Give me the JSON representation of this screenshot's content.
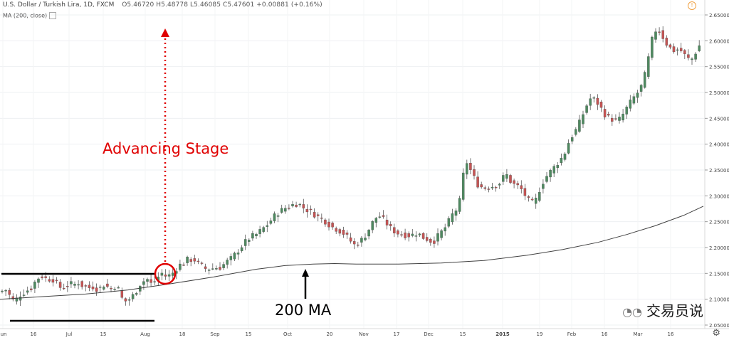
{
  "header": {
    "symbol": "U.S. Dollar / Turkish Lira, 1D, FXCM",
    "ohlc": "O5.46720 H5.48778 L5.46085 C5.47601 +0.00881 (+0.16%)",
    "indicator": "MA (200, close)"
  },
  "watermark": "交易员说",
  "chart_data": {
    "type": "line",
    "subtype": "candlestick",
    "y_ticks": [
      "2.65000",
      "2.60000",
      "2.55000",
      "2.50000",
      "2.45000",
      "2.40000",
      "2.35000",
      "2.30000",
      "2.25000",
      "2.20000",
      "2.15000",
      "2.10000",
      "2.05000"
    ],
    "ylim": [
      2.05,
      2.65
    ],
    "x_ticks": [
      "Jun",
      "16",
      "Jul",
      "15",
      "Aug",
      "18",
      "Sep",
      "15",
      "Oct",
      "20",
      "Nov",
      "17",
      "Dec",
      "15",
      "2015",
      "19",
      "Feb",
      "16",
      "Mar",
      "16"
    ],
    "annotations": {
      "stage_label": "Advancing Stage",
      "ma_label": "200 MA"
    },
    "colors": {
      "up": "#4e8a60",
      "down": "#c65454",
      "ma": "#404040",
      "annotation_red": "#e00000",
      "annotation_black": "#000000"
    },
    "price_path": {
      "x": [
        0,
        8,
        12,
        20,
        28,
        36,
        44,
        52,
        60,
        66,
        72,
        78,
        82,
        86,
        92,
        98,
        104,
        110,
        116,
        122,
        126,
        132,
        136,
        141,
        146,
        151,
        156,
        161,
        166,
        170,
        174,
        182,
        190,
        196,
        202,
        206,
        212,
        216,
        221,
        226,
        231,
        236,
        241,
        246,
        251,
        258,
        262,
        266,
        270,
        274,
        280,
        290,
        300,
        310,
        318,
        326,
        332,
        338,
        344,
        352,
        360,
        368,
        376,
        382,
        388,
        394,
        398,
        404,
        410,
        416,
        422,
        428,
        436,
        444,
        452,
        458,
        466,
        474,
        482,
        488,
        494,
        498,
        502,
        508,
        514,
        520,
        526,
        532,
        538,
        544,
        550,
        558,
        566,
        576,
        586,
        594,
        602,
        608,
        614,
        620,
        626,
        632,
        636,
        642,
        648,
        652,
        656,
        664,
        672,
        680,
        688,
        696,
        702,
        706,
        712,
        716,
        722,
        728,
        734,
        740,
        746,
        752,
        756,
        760,
        766,
        772,
        778,
        784,
        790,
        796,
        800,
        806,
        812,
        818,
        824,
        830,
        836,
        842,
        848,
        854,
        860,
        866,
        872,
        878,
        884,
        890,
        896,
        902,
        906,
        910,
        914,
        918,
        924,
        930,
        936,
        942,
        948,
        954,
        960,
        966,
        972,
        978,
        984
      ],
      "price": [
        2.115,
        2.118,
        2.11,
        2.095,
        2.108,
        2.115,
        2.122,
        2.14,
        2.145,
        2.138,
        2.14,
        2.135,
        2.125,
        2.122,
        2.125,
        2.13,
        2.128,
        2.132,
        2.126,
        2.125,
        2.122,
        2.125,
        2.12,
        2.122,
        2.128,
        2.124,
        2.12,
        2.125,
        2.12,
        2.105,
        2.095,
        2.1,
        2.112,
        2.128,
        2.135,
        2.14,
        2.13,
        2.133,
        2.14,
        2.152,
        2.145,
        2.145,
        2.148,
        2.156,
        2.165,
        2.17,
        2.178,
        2.172,
        2.18,
        2.175,
        2.168,
        2.158,
        2.16,
        2.162,
        2.172,
        2.18,
        2.19,
        2.2,
        2.21,
        2.22,
        2.225,
        2.235,
        2.245,
        2.255,
        2.265,
        2.27,
        2.275,
        2.278,
        2.282,
        2.285,
        2.282,
        2.275,
        2.27,
        2.262,
        2.255,
        2.25,
        2.24,
        2.235,
        2.228,
        2.22,
        2.21,
        2.205,
        2.208,
        2.215,
        2.225,
        2.24,
        2.255,
        2.262,
        2.255,
        2.245,
        2.235,
        2.228,
        2.225,
        2.223,
        2.228,
        2.22,
        2.215,
        2.21,
        2.22,
        2.23,
        2.24,
        2.255,
        2.265,
        2.275,
        2.3,
        2.36,
        2.365,
        2.34,
        2.32,
        2.315,
        2.318,
        2.32,
        2.325,
        2.335,
        2.34,
        2.33,
        2.322,
        2.318,
        2.31,
        2.295,
        2.285,
        2.29,
        2.305,
        2.32,
        2.335,
        2.345,
        2.355,
        2.365,
        2.375,
        2.39,
        2.41,
        2.42,
        2.435,
        2.455,
        2.475,
        2.49,
        2.485,
        2.475,
        2.46,
        2.452,
        2.448,
        2.445,
        2.45,
        2.465,
        2.478,
        2.49,
        2.5,
        2.515,
        2.535,
        2.56,
        2.59,
        2.615,
        2.625,
        2.61,
        2.595,
        2.585,
        2.58,
        2.585,
        2.575,
        2.565,
        2.565,
        2.58,
        2.595,
        2.6
      ]
    },
    "ma_path": {
      "x": [
        0,
        60,
        120,
        180,
        240,
        300,
        360,
        400,
        440,
        470,
        500,
        560,
        620,
        680,
        740,
        790,
        840,
        880,
        920,
        960,
        988
      ],
      "price": [
        2.1,
        2.105,
        2.11,
        2.118,
        2.13,
        2.143,
        2.158,
        2.165,
        2.168,
        2.169,
        2.168,
        2.168,
        2.17,
        2.175,
        2.185,
        2.196,
        2.21,
        2.225,
        2.242,
        2.262,
        2.28
      ]
    }
  }
}
